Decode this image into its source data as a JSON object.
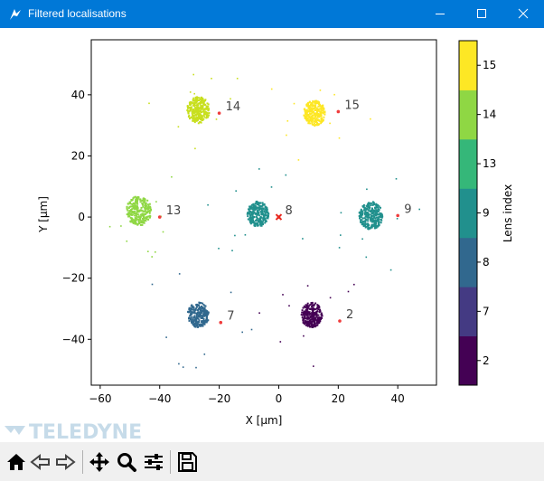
{
  "window": {
    "title": "Filtered localisations",
    "controls": {
      "minimize": "minimize",
      "maximize": "maximize",
      "close": "close"
    }
  },
  "watermark": "TELEDYNE",
  "plot": {
    "xlabel": "X [μm]",
    "ylabel": "Y [μm]",
    "xticks": [
      "−60",
      "−40",
      "−20",
      "0",
      "20",
      "40"
    ],
    "yticks": [
      "40",
      "20",
      "0",
      "−20",
      "−40"
    ],
    "colorbar": {
      "label": "Lens index",
      "levels": [
        "2",
        "7",
        "8",
        "9",
        "13",
        "14",
        "15"
      ],
      "colors": [
        "#440154",
        "#443a83",
        "#31688e",
        "#21908d",
        "#35b779",
        "#8fd744",
        "#fde725"
      ]
    }
  },
  "chart_data": {
    "type": "scatter",
    "xlabel": "X [μm]",
    "ylabel": "Y [μm]",
    "xlim": [
      -63,
      53
    ],
    "ylim": [
      -55,
      58
    ],
    "colorbar_label": "Lens index",
    "clusters": [
      {
        "lens": "2",
        "cx": 11,
        "cy": -32,
        "r": 3.6,
        "color": "#440154",
        "marker": [
          20.5,
          -34
        ]
      },
      {
        "lens": "7",
        "cx": -27,
        "cy": -32,
        "r": 3.6,
        "color": "#31688e",
        "marker": [
          -19.5,
          -34.5
        ]
      },
      {
        "lens": "8",
        "cx": -7,
        "cy": 1,
        "r": 3.6,
        "color": "#21908d",
        "marker": [
          0,
          0
        ]
      },
      {
        "lens": "9",
        "cx": 31,
        "cy": 0.5,
        "r": 4.0,
        "color": "#21908d",
        "marker": [
          40,
          0.5
        ]
      },
      {
        "lens": "13",
        "cx": -47,
        "cy": 2,
        "r": 4.2,
        "color": "#8fd744",
        "marker": [
          -40,
          0
        ]
      },
      {
        "lens": "14",
        "cx": -27,
        "cy": 35,
        "r": 3.8,
        "color": "#c8df1e",
        "marker": [
          -20,
          34
        ]
      },
      {
        "lens": "15",
        "cx": 12,
        "cy": 34,
        "r": 3.6,
        "color": "#fde725",
        "marker": [
          20,
          34.5
        ]
      }
    ],
    "origin_marker": [
      0,
      0
    ]
  },
  "toolbar": {
    "items": [
      "home",
      "back",
      "forward",
      "pan",
      "zoom",
      "configure-subplots",
      "save"
    ]
  }
}
